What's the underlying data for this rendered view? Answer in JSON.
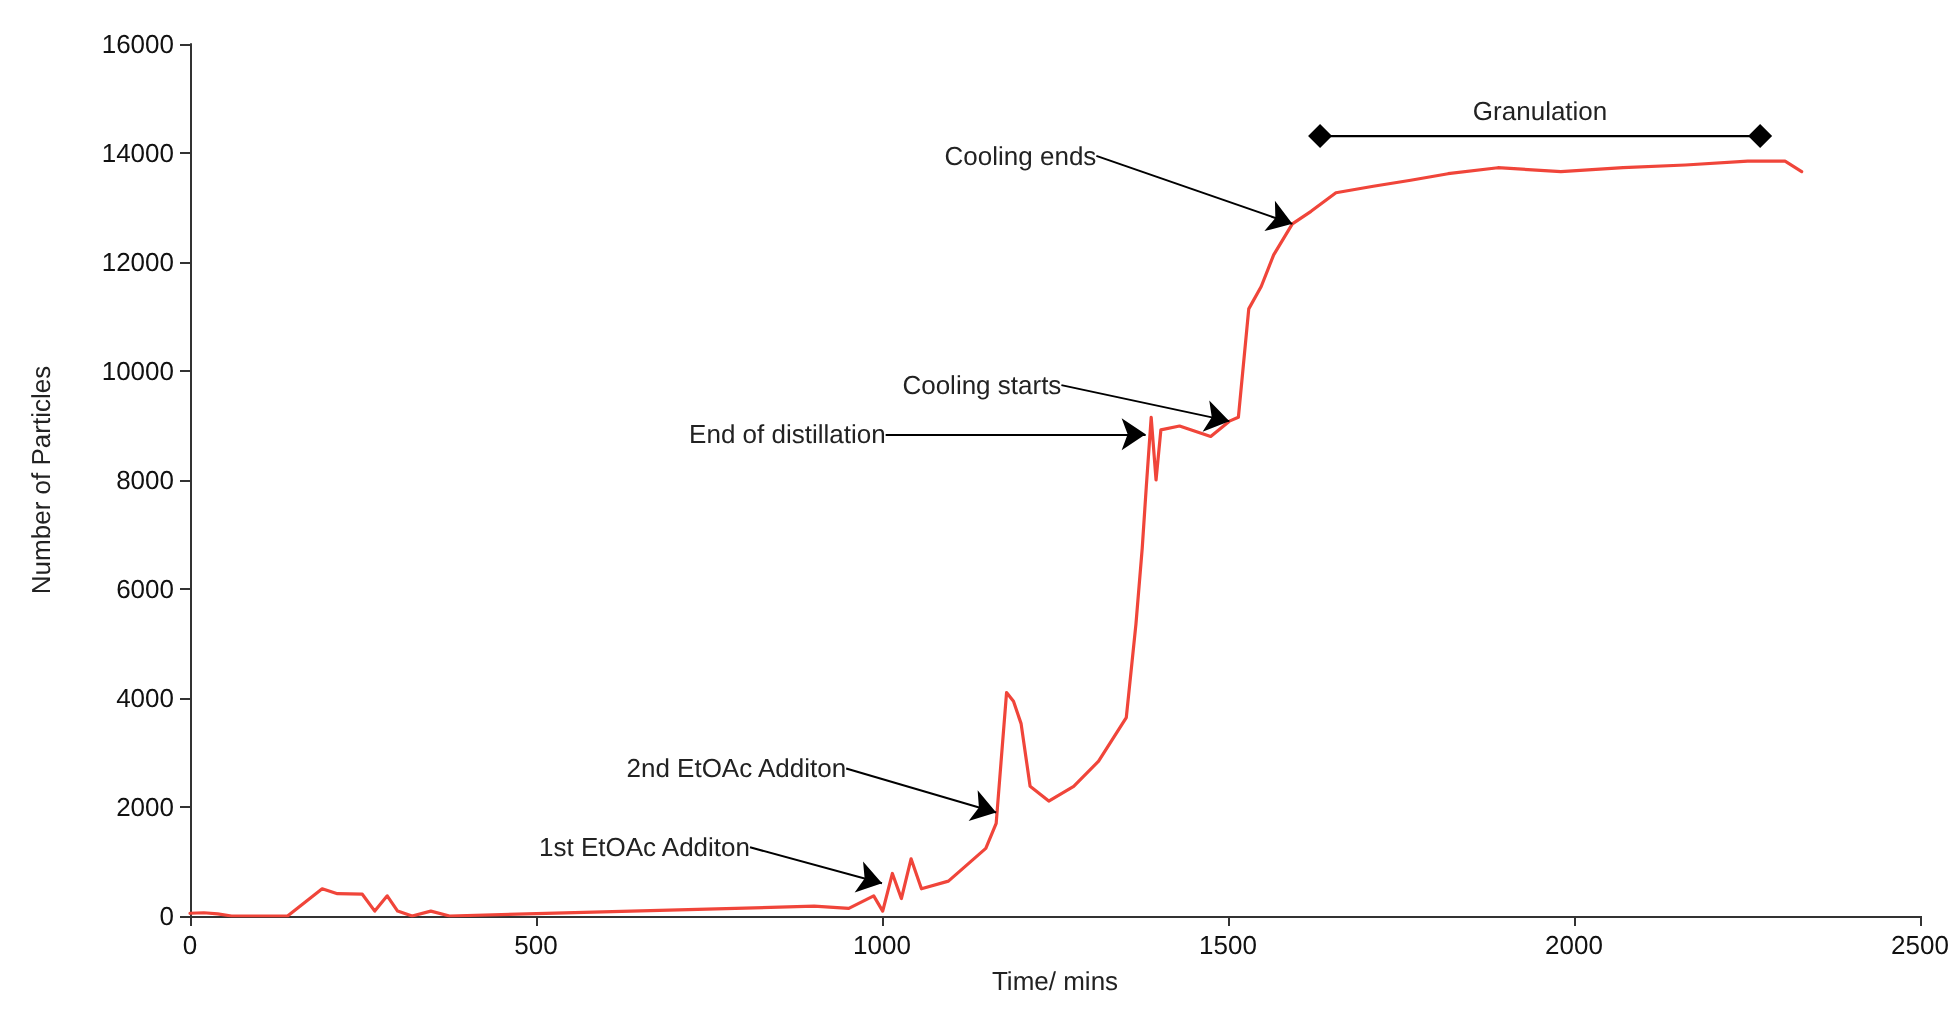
{
  "chart_data": {
    "type": "line",
    "xlabel": "Time/ mins",
    "ylabel": "Number of Particles",
    "xlim": [
      0,
      2500
    ],
    "xticks": [
      0,
      500,
      1000,
      1500,
      2000,
      2500
    ],
    "ylim": [
      0,
      16000
    ],
    "yticks": [
      0,
      2000,
      4000,
      6000,
      8000,
      10000,
      12000,
      14000,
      16000
    ],
    "grid": false,
    "legend": false,
    "series": [
      {
        "color": "#f0453a",
        "x": [
          0,
          20,
          40,
          60,
          141,
          191,
          213,
          249,
          267,
          285,
          300,
          321,
          348,
          375,
          902,
          952,
          988,
          1001,
          1015,
          1028,
          1042,
          1057,
          1096,
          1150,
          1165,
          1180,
          1190,
          1201,
          1214,
          1241,
          1277,
          1313,
          1353,
          1367,
          1376,
          1382,
          1389,
          1396,
          1403,
          1430,
          1475,
          1502,
          1515,
          1530,
          1548,
          1566,
          1593,
          1620,
          1656,
          1710,
          1764,
          1818,
          1890,
          1981,
          2071,
          2161,
          2251,
          2305,
          2329
        ],
        "values": [
          50,
          60,
          40,
          0,
          0,
          500,
          410,
          400,
          90,
          370,
          90,
          0,
          90,
          0,
          180,
          140,
          370,
          90,
          780,
          320,
          1050,
          500,
          640,
          1240,
          1700,
          4100,
          3940,
          3530,
          2380,
          2110,
          2380,
          2840,
          3640,
          5360,
          6740,
          7890,
          9150,
          8000,
          8920,
          8990,
          8800,
          9080,
          9150,
          11140,
          11550,
          12130,
          12700,
          12930,
          13270,
          13390,
          13500,
          13620,
          13730,
          13660,
          13730,
          13780,
          13850,
          13850,
          13660
        ]
      },
      {
        "name": "Granulation",
        "color": "#000000",
        "marker": "diamond",
        "x": [
          1633,
          2269
        ],
        "values": [
          14310,
          14310
        ]
      }
    ],
    "annotations": [
      {
        "text": "1st EtOAc Additon",
        "x": 1000,
        "y": 600
      },
      {
        "text": "2nd EtOAc Additon",
        "x": 1165,
        "y": 1900
      },
      {
        "text": "End of distillation",
        "x": 1381,
        "y": 8840
      },
      {
        "text": "Cooling starts",
        "x": 1502,
        "y": 9080
      },
      {
        "text": "Cooling ends",
        "x": 1593,
        "y": 12700
      }
    ]
  }
}
